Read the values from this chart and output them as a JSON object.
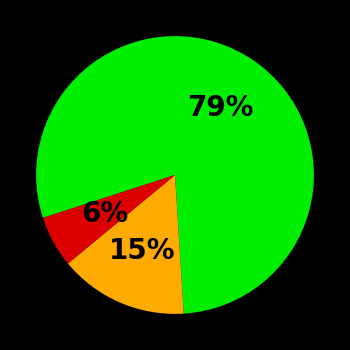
{
  "slices": [
    79,
    15,
    6
  ],
  "colors": [
    "#00ee00",
    "#ffaa00",
    "#dd0000"
  ],
  "labels": [
    "79%",
    "15%",
    "6%"
  ],
  "background_color": "#000000",
  "startangle": 198,
  "label_radii": [
    0.58,
    0.6,
    0.58
  ],
  "label_fontsize": 20,
  "label_fontweight": "bold"
}
